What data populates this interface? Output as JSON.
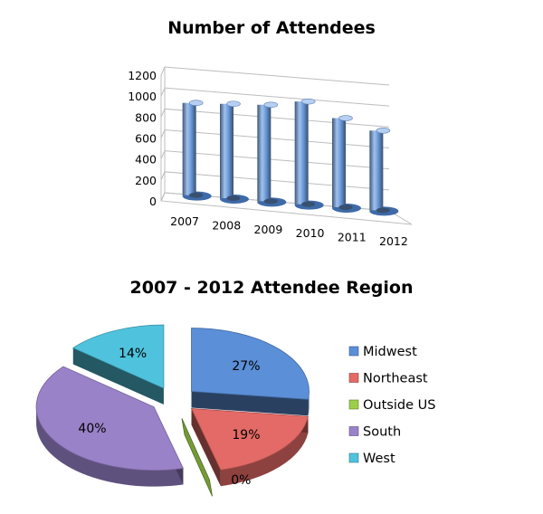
{
  "chart_data": [
    {
      "type": "bar",
      "title": "Number of Attendees",
      "categories": [
        "2007",
        "2008",
        "2009",
        "2010",
        "2011",
        "2012"
      ],
      "values": [
        880,
        900,
        920,
        980,
        850,
        760
      ],
      "y_ticks": [
        "0",
        "200",
        "400",
        "600",
        "800",
        "1000",
        "1200"
      ],
      "ylim": [
        0,
        1200
      ],
      "grid": true,
      "style": "3d-cylinder",
      "bar_color": "#6f9fe0"
    },
    {
      "type": "pie",
      "title": "2007 - 2012 Attendee Region",
      "style": "3d-exploded",
      "legend_position": "right",
      "slices": [
        {
          "label": "Midwest",
          "value": 27,
          "pct_label": "27%",
          "color": "#5b8fd8"
        },
        {
          "label": "Northeast",
          "value": 19,
          "pct_label": "19%",
          "color": "#e36a66"
        },
        {
          "label": "Outside US",
          "value": 0,
          "pct_label": "0%",
          "color": "#9ccf47"
        },
        {
          "label": "South",
          "value": 40,
          "pct_label": "40%",
          "color": "#9a82c9"
        },
        {
          "label": "West",
          "value": 14,
          "pct_label": "14%",
          "color": "#4fc3dd"
        }
      ]
    }
  ]
}
